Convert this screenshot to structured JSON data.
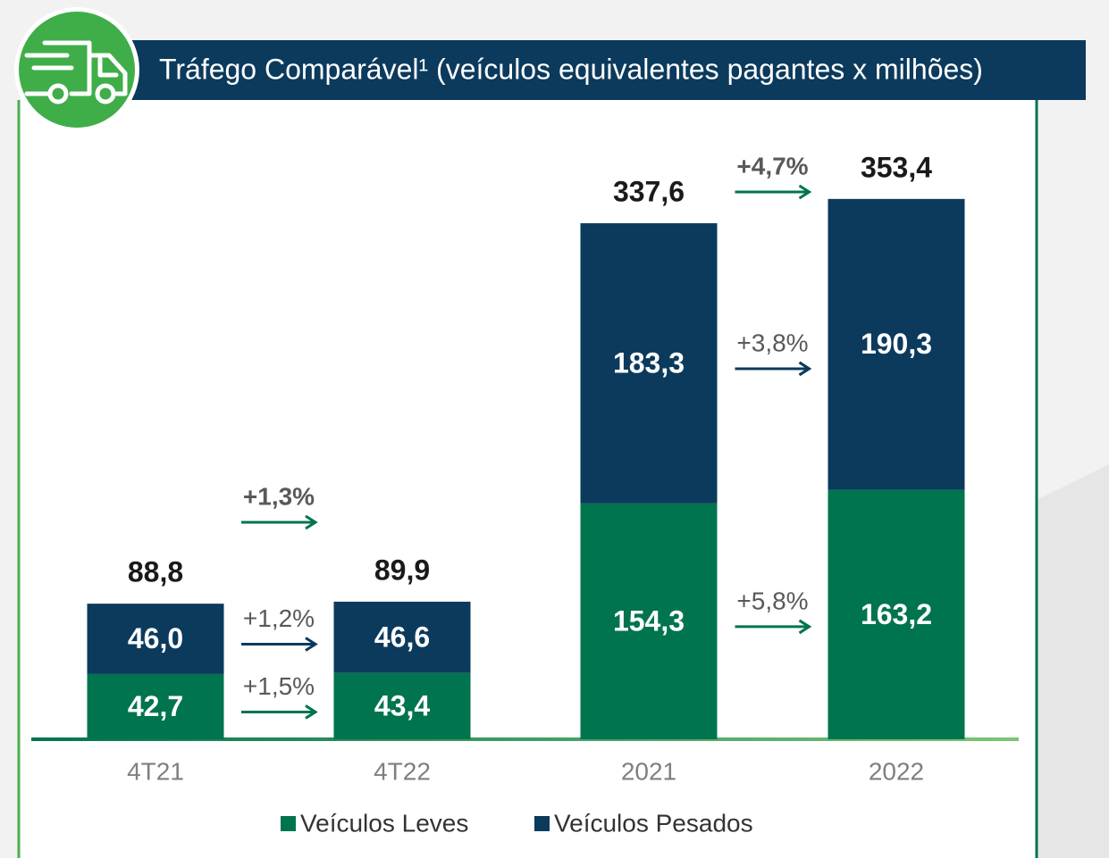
{
  "chart_data": {
    "type": "stacked_bar",
    "title": "Tráfego Comparável¹ (veículos equivalentes pagantes x milhões)",
    "categories": [
      "4T21",
      "4T22",
      "2021",
      "2022"
    ],
    "series": [
      {
        "name": "Veículos Leves",
        "color": "#00744f",
        "values": [
          42.7,
          43.4,
          154.3,
          163.2
        ],
        "value_labels": [
          "42,7",
          "43,4",
          "154,3",
          "163,2"
        ]
      },
      {
        "name": "Veículos Pesados",
        "color": "#0b3a5c",
        "values": [
          46.0,
          46.6,
          183.3,
          190.3
        ],
        "value_labels": [
          "46,0",
          "46,6",
          "183,3",
          "190,3"
        ]
      }
    ],
    "totals": {
      "values": [
        88.8,
        89.9,
        337.6,
        353.4
      ],
      "value_labels": [
        "88,8",
        "89,9",
        "337,6",
        "353,4"
      ]
    },
    "growth": [
      {
        "total": "+1,3%",
        "series": [
          "+1,5%",
          "+1,2%"
        ]
      },
      {
        "total": "+4,7%",
        "series": [
          "+5,8%",
          "+3,8%"
        ]
      }
    ]
  }
}
